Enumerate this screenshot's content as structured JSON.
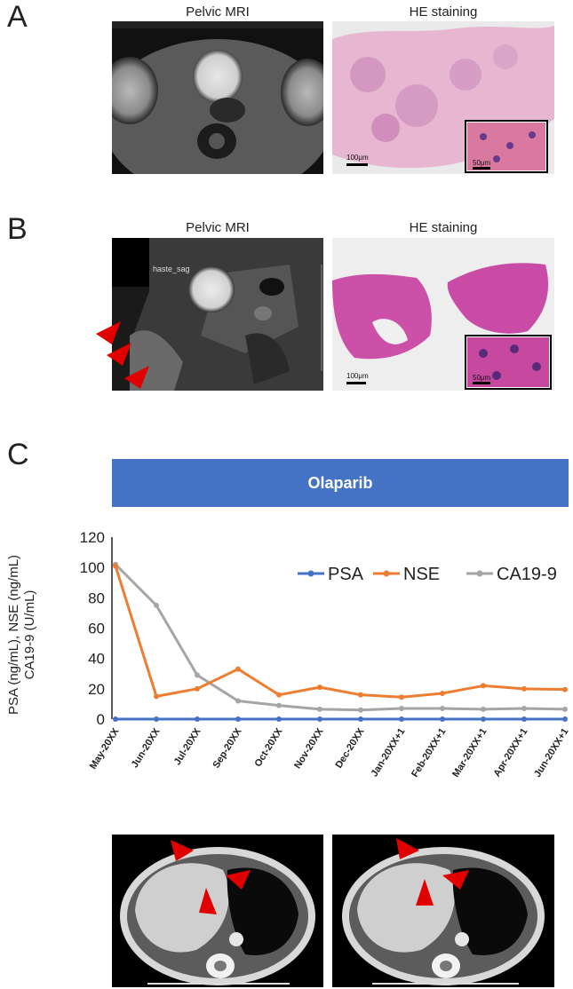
{
  "panels": {
    "a": {
      "letter": "A",
      "mri_title": "Pelvic MRI",
      "he_title": "HE staining",
      "scale_main": "100μm",
      "scale_inset": "50μm"
    },
    "b": {
      "letter": "B",
      "mri_title": "Pelvic MRI",
      "he_title": "HE staining",
      "scale_main": "100μm",
      "scale_inset": "50μm",
      "sequence_label": "haste_sag"
    },
    "c": {
      "letter": "C",
      "drug": "Olaparib"
    }
  },
  "colors": {
    "psa": "#4472c4",
    "nse": "#ed7d31",
    "ca199": "#a5a5a5",
    "bar": "#4472c4",
    "arrow": "#e00000"
  },
  "chart_data": {
    "type": "line",
    "categories": [
      "May-20XX",
      "Jun-20XX",
      "Jul-20XX",
      "Sep-20XX",
      "Oct-20XX",
      "Nov-20XX",
      "Dec-20XX",
      "Jan-20XX+1",
      "Feb-20XX+1",
      "Mar-20XX+1",
      "Apr-20XX+1",
      "Jun-20XX+1"
    ],
    "series": [
      {
        "name": "PSA",
        "color": "#4472c4",
        "values": [
          0,
          0,
          0,
          0,
          0,
          0,
          0,
          0,
          0,
          0,
          0,
          0
        ]
      },
      {
        "name": "NSE",
        "color": "#ed7d31",
        "values": [
          101,
          15,
          20,
          33,
          16,
          21,
          16,
          14.5,
          17,
          22,
          20,
          19.5
        ]
      },
      {
        "name": "CA19-9",
        "color": "#a5a5a5",
        "values": [
          102,
          75,
          29,
          12,
          9,
          6.5,
          6,
          7,
          7,
          6.5,
          7,
          6.5
        ]
      }
    ],
    "yticks": [
      "0",
      "20",
      "40",
      "60",
      "80",
      "100",
      "120"
    ],
    "ylim": [
      0,
      120
    ],
    "ylabel_lines": [
      "PSA (ng/mL), NSE (ng/mL)",
      "CA19-9 (U/mL)"
    ],
    "legend_position": "top-right"
  }
}
